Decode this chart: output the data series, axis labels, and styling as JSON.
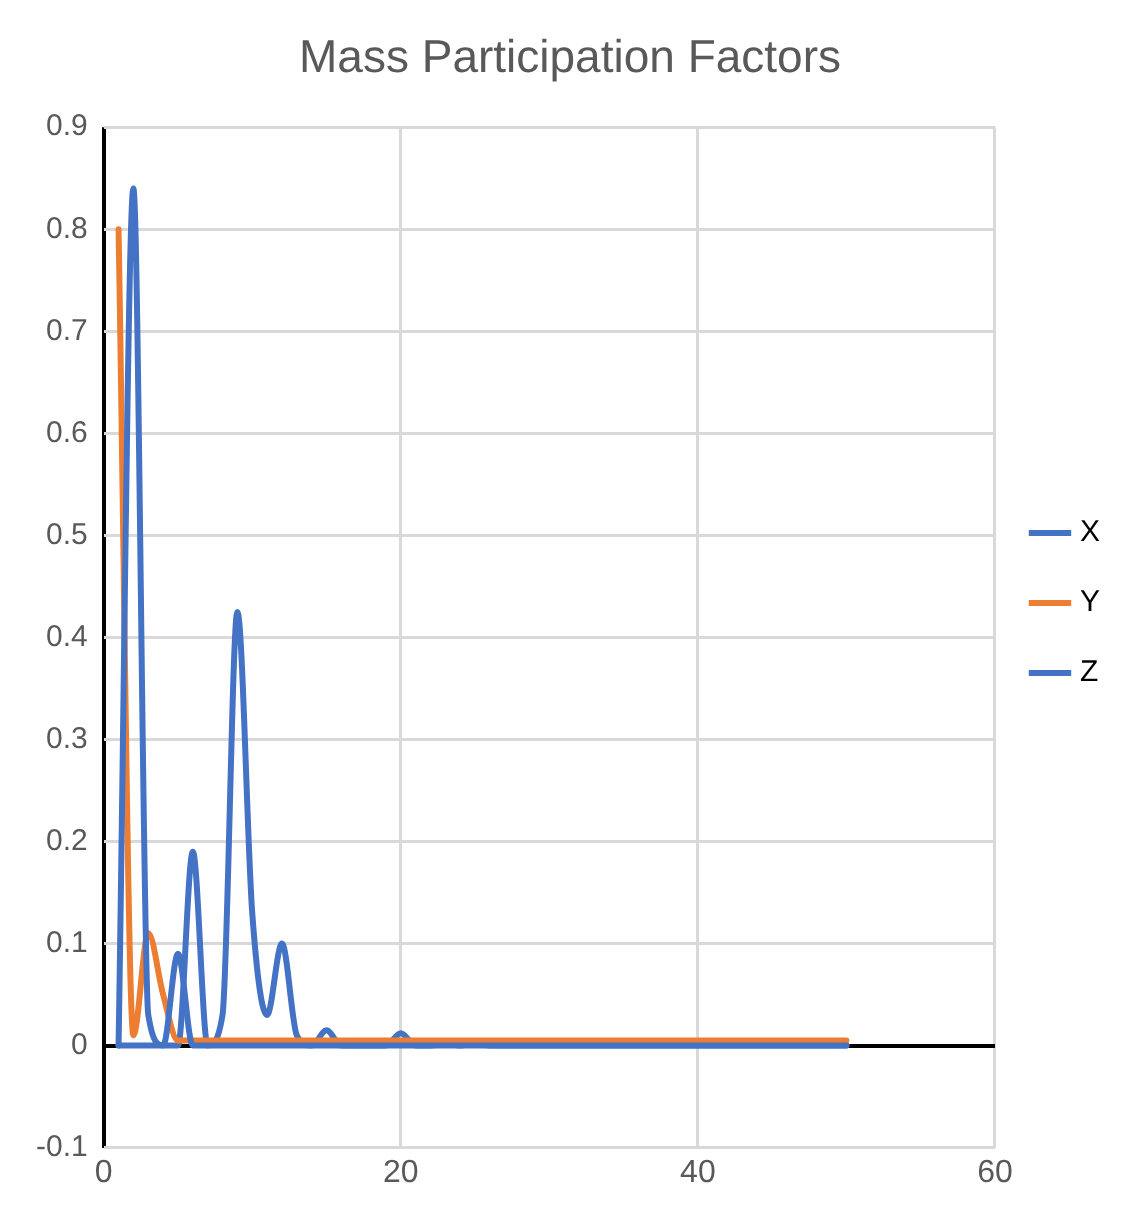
{
  "chart_data": {
    "type": "line",
    "title": "Mass Participation Factors",
    "x": [
      1,
      2,
      3,
      4,
      5,
      6,
      7,
      8,
      9,
      10,
      11,
      12,
      13,
      14,
      15,
      16,
      17,
      18,
      19,
      20,
      21,
      22,
      23,
      24,
      25,
      26,
      27,
      28,
      29,
      30,
      31,
      32,
      33,
      34,
      35,
      36,
      37,
      38,
      39,
      40,
      41,
      42,
      43,
      44,
      45,
      46,
      47,
      48,
      49,
      50
    ],
    "series": [
      {
        "name": "X",
        "color": "#4472c4",
        "values": [
          0,
          0.84,
          0.03,
          0,
          0.09,
          0,
          0,
          0,
          0,
          0,
          0,
          0,
          0,
          0,
          0,
          0,
          0,
          0,
          0,
          0,
          0,
          0,
          0,
          0,
          0,
          0,
          0,
          0,
          0,
          0,
          0,
          0,
          0,
          0,
          0,
          0,
          0,
          0,
          0,
          0,
          0,
          0,
          0,
          0,
          0,
          0,
          0,
          0,
          0,
          0
        ]
      },
      {
        "name": "Y",
        "color": "#ed7d31",
        "values": [
          0.8,
          0.01,
          0.11,
          0.05,
          0.005,
          0.005,
          0.005,
          0.005,
          0.005,
          0.005,
          0.005,
          0.005,
          0.005,
          0.005,
          0.005,
          0.005,
          0.005,
          0.005,
          0.005,
          0.005,
          0.005,
          0.005,
          0.005,
          0.005,
          0.005,
          0.005,
          0.005,
          0.005,
          0.005,
          0.005,
          0.005,
          0.005,
          0.005,
          0.005,
          0.005,
          0.005,
          0.005,
          0.005,
          0.005,
          0.005,
          0.005,
          0.005,
          0.005,
          0.005,
          0.005,
          0.005,
          0.005,
          0.005,
          0.005,
          0.005
        ]
      },
      {
        "name": "Z",
        "color": "#4472c4",
        "values": [
          0,
          0,
          0,
          0,
          0,
          0.19,
          0,
          0.03,
          0.425,
          0.13,
          0.03,
          0.1,
          0.01,
          0,
          0.015,
          0,
          0,
          0,
          0,
          0.012,
          0,
          0,
          0.003,
          0,
          0.003,
          0,
          0,
          0,
          0,
          0,
          0,
          0,
          0,
          0,
          0,
          0,
          0,
          0,
          0,
          0,
          0,
          0,
          0,
          0,
          0,
          0,
          0,
          0,
          0,
          0
        ]
      }
    ],
    "xlim": [
      0,
      60
    ],
    "xticks": [
      0,
      20,
      40,
      60
    ],
    "ylim": [
      -0.1,
      0.9
    ],
    "yticks": [
      -0.1,
      0,
      0.1,
      0.2,
      0.3,
      0.4,
      0.5,
      0.6,
      0.7,
      0.8,
      0.9
    ],
    "grid": true,
    "legend": "right",
    "marker": "none",
    "line_style": "solid"
  }
}
